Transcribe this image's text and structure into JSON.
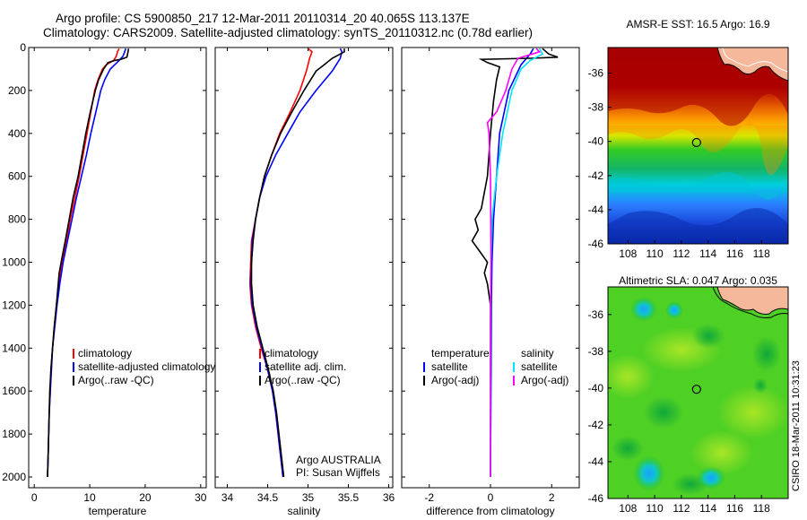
{
  "header": {
    "line1": "Argo profile: CS 5900850_217 12-Mar-2011 20110314_20 40.065S 113.137E",
    "line2": "Climatology: CARS2009. Satellite-adjusted climatology: synTS_20110312.nc (0.78d earlier)"
  },
  "side_label": "CSIRO 18-Mar-2011 10:31:23",
  "colors": {
    "climatology": "#ff0000",
    "satellite": "#0000ff",
    "argo": "#000000",
    "sal_satellite": "#00e5ff",
    "sal_argo": "#ff00ff"
  },
  "chart_data": [
    {
      "type": "line",
      "xlabel": "temperature",
      "xlim": [
        -1,
        31
      ],
      "ylim": [
        2050,
        0
      ],
      "xticks": [
        0,
        10,
        20,
        30
      ],
      "yticks": [
        0,
        200,
        400,
        600,
        800,
        1000,
        1200,
        1400,
        1600,
        1800,
        2000
      ],
      "legend": [
        "climatology",
        "satellite-adjusted climatology",
        "Argo(..raw -QC)"
      ],
      "series": [
        {
          "name": "climatology",
          "color": "#ff0000",
          "points": [
            [
              15.3,
              5
            ],
            [
              15.0,
              20
            ],
            [
              14.8,
              40
            ],
            [
              14.3,
              60
            ],
            [
              13.0,
              80
            ],
            [
              12.3,
              100
            ],
            [
              11.5,
              150
            ],
            [
              10.9,
              200
            ],
            [
              10.2,
              300
            ],
            [
              9.5,
              400
            ],
            [
              8.8,
              500
            ],
            [
              8.1,
              600
            ],
            [
              7.3,
              700
            ],
            [
              6.5,
              800
            ],
            [
              5.8,
              900
            ],
            [
              5.0,
              1000
            ],
            [
              4.5,
              1100
            ],
            [
              4.0,
              1200
            ],
            [
              3.6,
              1300
            ],
            [
              3.3,
              1400
            ],
            [
              3.0,
              1500
            ],
            [
              2.9,
              1600
            ],
            [
              2.7,
              1700
            ],
            [
              2.6,
              1800
            ],
            [
              2.5,
              1900
            ],
            [
              2.4,
              2000
            ]
          ]
        },
        {
          "name": "satellite-adjusted climatology",
          "color": "#0000ff",
          "points": [
            [
              16.5,
              5
            ],
            [
              16.3,
              20
            ],
            [
              16.0,
              40
            ],
            [
              15.3,
              60
            ],
            [
              14.5,
              80
            ],
            [
              13.7,
              100
            ],
            [
              12.7,
              150
            ],
            [
              12.0,
              200
            ],
            [
              11.1,
              300
            ],
            [
              10.2,
              400
            ],
            [
              9.4,
              500
            ],
            [
              8.5,
              600
            ],
            [
              7.6,
              700
            ],
            [
              6.8,
              800
            ],
            [
              6.0,
              900
            ],
            [
              5.2,
              1000
            ],
            [
              4.6,
              1100
            ],
            [
              4.1,
              1200
            ],
            [
              3.7,
              1300
            ],
            [
              3.3,
              1400
            ],
            [
              3.1,
              1500
            ],
            [
              2.9,
              1600
            ],
            [
              2.7,
              1700
            ],
            [
              2.6,
              1800
            ],
            [
              2.5,
              1900
            ],
            [
              2.4,
              2000
            ]
          ]
        },
        {
          "name": "Argo(..raw -QC)",
          "color": "#000000",
          "points": [
            [
              17.0,
              5
            ],
            [
              16.9,
              20
            ],
            [
              16.7,
              45
            ],
            [
              15.6,
              55
            ],
            [
              14.5,
              60
            ],
            [
              13.3,
              70
            ],
            [
              12.5,
              100
            ],
            [
              11.6,
              150
            ],
            [
              11.0,
              200
            ],
            [
              10.1,
              300
            ],
            [
              9.3,
              400
            ],
            [
              8.6,
              500
            ],
            [
              7.9,
              600
            ],
            [
              7.0,
              700
            ],
            [
              6.3,
              800
            ],
            [
              5.6,
              900
            ],
            [
              5.0,
              980
            ],
            [
              4.5,
              1050
            ],
            [
              4.0,
              1200
            ],
            [
              3.6,
              1300
            ],
            [
              3.3,
              1400
            ],
            [
              3.0,
              1500
            ],
            [
              2.8,
              1600
            ],
            [
              2.7,
              1700
            ],
            [
              2.6,
              1800
            ],
            [
              2.5,
              1900
            ],
            [
              2.4,
              2000
            ]
          ]
        }
      ]
    },
    {
      "type": "line",
      "xlabel": "salinity",
      "xlim": [
        33.85,
        36.05
      ],
      "ylim": [
        2050,
        0
      ],
      "xticks": [
        34,
        34.5,
        35,
        35.5,
        36
      ],
      "legend": [
        "climatology",
        "satellite adj. clim.",
        "Argo(..raw -QC)"
      ],
      "annotation": [
        "Argo AUSTRALIA",
        "PI: Susan Wijffels"
      ],
      "series": [
        {
          "name": "climatology",
          "color": "#ff0000",
          "points": [
            [
              35.0,
              5
            ],
            [
              35.05,
              20
            ],
            [
              35.02,
              50
            ],
            [
              35.0,
              80
            ],
            [
              34.98,
              110
            ],
            [
              34.9,
              200
            ],
            [
              34.78,
              300
            ],
            [
              34.65,
              400
            ],
            [
              34.55,
              500
            ],
            [
              34.46,
              600
            ],
            [
              34.4,
              700
            ],
            [
              34.35,
              800
            ],
            [
              34.3,
              900
            ],
            [
              34.29,
              1000
            ],
            [
              34.28,
              1100
            ],
            [
              34.3,
              1200
            ],
            [
              34.35,
              1300
            ],
            [
              34.42,
              1400
            ],
            [
              34.5,
              1500
            ],
            [
              34.56,
              1600
            ],
            [
              34.6,
              1700
            ],
            [
              34.63,
              1800
            ],
            [
              34.66,
              1900
            ],
            [
              34.69,
              2000
            ]
          ]
        },
        {
          "name": "satellite adj. clim.",
          "color": "#0000ff",
          "points": [
            [
              35.4,
              5
            ],
            [
              35.42,
              20
            ],
            [
              35.4,
              50
            ],
            [
              35.35,
              80
            ],
            [
              35.3,
              110
            ],
            [
              35.1,
              200
            ],
            [
              34.9,
              300
            ],
            [
              34.75,
              400
            ],
            [
              34.6,
              500
            ],
            [
              34.48,
              600
            ],
            [
              34.4,
              700
            ],
            [
              34.35,
              800
            ],
            [
              34.31,
              900
            ],
            [
              34.3,
              1000
            ],
            [
              34.29,
              1100
            ],
            [
              34.31,
              1200
            ],
            [
              34.36,
              1300
            ],
            [
              34.43,
              1400
            ],
            [
              34.5,
              1500
            ],
            [
              34.56,
              1600
            ],
            [
              34.6,
              1700
            ],
            [
              34.63,
              1800
            ],
            [
              34.66,
              1900
            ],
            [
              34.69,
              2000
            ]
          ]
        },
        {
          "name": "Argo(..raw -QC)",
          "color": "#000000",
          "points": [
            [
              35.45,
              5
            ],
            [
              35.45,
              20
            ],
            [
              35.3,
              50
            ],
            [
              35.2,
              80
            ],
            [
              35.1,
              110
            ],
            [
              34.95,
              200
            ],
            [
              34.8,
              300
            ],
            [
              34.66,
              400
            ],
            [
              34.55,
              500
            ],
            [
              34.46,
              600
            ],
            [
              34.4,
              700
            ],
            [
              34.35,
              800
            ],
            [
              34.32,
              900
            ],
            [
              34.3,
              1000
            ],
            [
              34.3,
              1100
            ],
            [
              34.32,
              1200
            ],
            [
              34.37,
              1300
            ],
            [
              34.44,
              1400
            ],
            [
              34.51,
              1500
            ],
            [
              34.57,
              1600
            ],
            [
              34.61,
              1700
            ],
            [
              34.64,
              1800
            ],
            [
              34.67,
              1900
            ],
            [
              34.7,
              2000
            ]
          ]
        }
      ]
    },
    {
      "type": "line",
      "xlabel": "difference from climatology",
      "xlim": [
        -2.9,
        2.9
      ],
      "ylim": [
        2050,
        0
      ],
      "xticks": [
        -2,
        0,
        2
      ],
      "legend_groups": [
        {
          "title": "temperature",
          "items": [
            "satellite",
            "Argo(-adj)"
          ]
        },
        {
          "title": "salinity",
          "items": [
            "satellite",
            "Argo(-adj)"
          ]
        }
      ],
      "series": [
        {
          "name": "temperature satellite",
          "color": "#0000ff",
          "points": [
            [
              1.4,
              5
            ],
            [
              1.3,
              30
            ],
            [
              1.0,
              80
            ],
            [
              0.6,
              200
            ],
            [
              0.3,
              400
            ],
            [
              0.2,
              600
            ],
            [
              0.1,
              800
            ],
            [
              0.05,
              1000
            ],
            [
              0.03,
              1200
            ],
            [
              0.02,
              1500
            ],
            [
              0.0,
              2000
            ]
          ]
        },
        {
          "name": "temperature Argo(-adj)",
          "color": "#000000",
          "points": [
            [
              1.7,
              5
            ],
            [
              1.9,
              30
            ],
            [
              2.2,
              45
            ],
            [
              1.3,
              50
            ],
            [
              -0.3,
              55
            ],
            [
              -0.1,
              70
            ],
            [
              0.3,
              90
            ],
            [
              0.2,
              150
            ],
            [
              0.1,
              250
            ],
            [
              0.0,
              400
            ],
            [
              -0.1,
              600
            ],
            [
              -0.3,
              750
            ],
            [
              -0.5,
              800
            ],
            [
              -0.4,
              850
            ],
            [
              -0.6,
              900
            ],
            [
              -0.3,
              960
            ],
            [
              -0.1,
              1000
            ],
            [
              -0.2,
              1050
            ],
            [
              -0.1,
              1100
            ],
            [
              0.0,
              1200
            ],
            [
              0.0,
              1500
            ],
            [
              0.0,
              2000
            ]
          ]
        },
        {
          "name": "salinity satellite",
          "color": "#00e5ff",
          "points": [
            [
              1.6,
              5
            ],
            [
              1.7,
              30
            ],
            [
              1.3,
              60
            ],
            [
              1.0,
              100
            ],
            [
              0.7,
              200
            ],
            [
              0.4,
              400
            ],
            [
              0.2,
              600
            ],
            [
              0.05,
              800
            ],
            [
              0.02,
              1000
            ],
            [
              0.0,
              1200
            ],
            [
              0.0,
              2000
            ]
          ]
        },
        {
          "name": "salinity Argo(-adj)",
          "color": "#ff00ff",
          "points": [
            [
              1.5,
              5
            ],
            [
              1.6,
              20
            ],
            [
              0.9,
              50
            ],
            [
              0.7,
              100
            ],
            [
              0.5,
              200
            ],
            [
              0.2,
              300
            ],
            [
              -0.1,
              350
            ],
            [
              -0.05,
              400
            ],
            [
              0.0,
              600
            ],
            [
              0.02,
              1000
            ],
            [
              0.0,
              1300
            ],
            [
              0.0,
              2000
            ]
          ]
        }
      ]
    },
    {
      "type": "heatmap",
      "title": "AMSR-E SST: 16.5  Argo: 16.9",
      "xticks": [
        108,
        110,
        112,
        114,
        116,
        118
      ],
      "yticks": [
        -36,
        -38,
        -40,
        -42,
        -44,
        -46
      ],
      "xlim": [
        106.5,
        120
      ],
      "ylim": [
        -46,
        -34.5
      ],
      "marker": {
        "lon": 113.137,
        "lat": -40.065
      }
    },
    {
      "type": "heatmap",
      "title": "Altimetric SLA: 0.047  Argo: 0.035",
      "xticks": [
        108,
        110,
        112,
        114,
        116,
        118
      ],
      "yticks": [
        -36,
        -38,
        -40,
        -42,
        -44,
        -46
      ],
      "xlim": [
        106.5,
        120
      ],
      "ylim": [
        -46,
        -34.5
      ],
      "marker": {
        "lon": 113.137,
        "lat": -40.065
      }
    }
  ]
}
